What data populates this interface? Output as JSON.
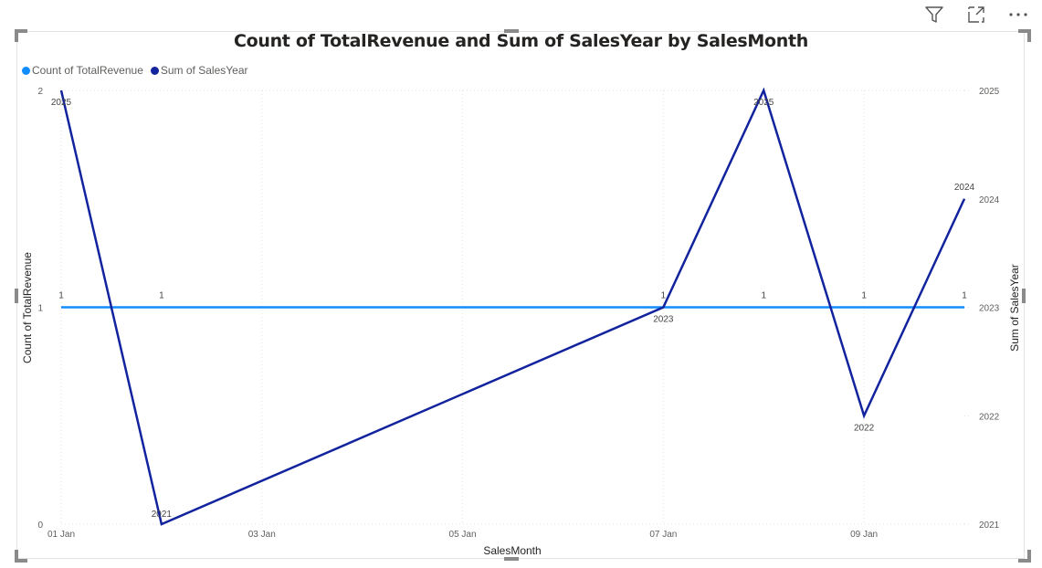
{
  "toolbar": {
    "filter_icon": "filter-icon",
    "focus_icon": "focus-mode-icon",
    "more_icon": "more-options-icon",
    "more_label": "···"
  },
  "chart_data": {
    "type": "line",
    "title": "Count of TotalRevenue and Sum of SalesYear by SalesMonth",
    "xlabel": "SalesMonth",
    "ylabel": "Count of TotalRevenue",
    "y2label": "Sum of SalesYear",
    "x": [
      "01 Jan",
      "02 Jan",
      "07 Jan",
      "08 Jan",
      "09 Jan",
      "10 Jan"
    ],
    "x_tick_labels": [
      "01 Jan",
      "03 Jan",
      "05 Jan",
      "07 Jan",
      "09 Jan"
    ],
    "ylim": [
      0,
      2
    ],
    "y_ticks": [
      0,
      1,
      2
    ],
    "y2lim": [
      2021,
      2025
    ],
    "y2_ticks": [
      2021,
      2022,
      2023,
      2024,
      2025
    ],
    "legend_position": "top-left",
    "grid": true,
    "series": [
      {
        "name": "Count of TotalRevenue",
        "axis": "left",
        "color": "#118DFF",
        "values": [
          1,
          1,
          1,
          1,
          1,
          1
        ],
        "labels": [
          "1",
          "1",
          "1",
          "1",
          "1",
          "1"
        ]
      },
      {
        "name": "Sum of SalesYear",
        "axis": "right",
        "color": "#12239E",
        "values": [
          2025,
          2021,
          2023,
          2025,
          2022,
          2024
        ],
        "labels": [
          "2025",
          "2021",
          "2023",
          "2025",
          "2022",
          "2024"
        ]
      }
    ]
  }
}
